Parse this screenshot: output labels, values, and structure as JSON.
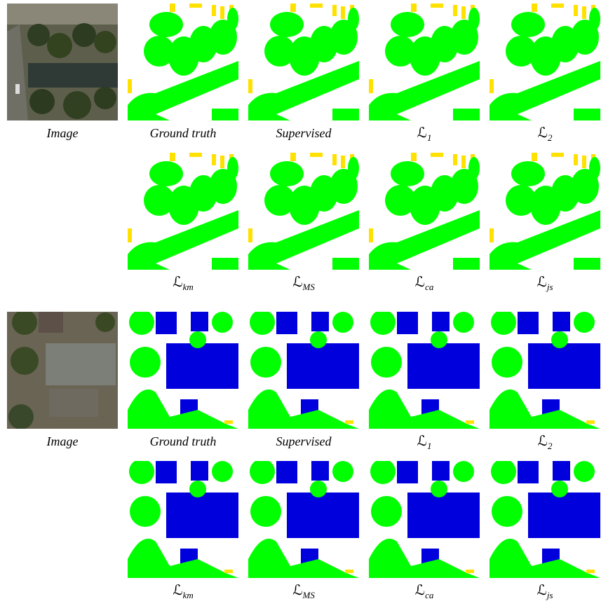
{
  "groups": [
    {
      "rows": [
        {
          "panels": [
            {
              "caption": "Image"
            },
            {
              "caption": "Ground truth"
            },
            {
              "caption": "Supervised"
            },
            {
              "caption": {
                "symbol": "ℒ",
                "sub": "1"
              }
            },
            {
              "caption": {
                "symbol": "ℒ",
                "sub": "2"
              }
            }
          ]
        },
        {
          "panels": [
            {
              "caption": {
                "symbol": "ℒ",
                "sub": "km"
              }
            },
            {
              "caption": {
                "symbol": "ℒ",
                "sub": "MS"
              }
            },
            {
              "caption": {
                "symbol": "ℒ",
                "sub": "ca"
              }
            },
            {
              "caption": {
                "symbol": "ℒ",
                "sub": "js"
              }
            }
          ]
        }
      ]
    },
    {
      "rows": [
        {
          "panels": [
            {
              "caption": "Image"
            },
            {
              "caption": "Ground truth"
            },
            {
              "caption": "Supervised"
            },
            {
              "caption": {
                "symbol": "ℒ",
                "sub": "1"
              }
            },
            {
              "caption": {
                "symbol": "ℒ",
                "sub": "2"
              }
            }
          ]
        },
        {
          "panels": [
            {
              "caption": {
                "symbol": "ℒ",
                "sub": "km"
              }
            },
            {
              "caption": {
                "symbol": "ℒ",
                "sub": "MS"
              }
            },
            {
              "caption": {
                "symbol": "ℒ",
                "sub": "ca"
              }
            },
            {
              "caption": {
                "symbol": "ℒ",
                "sub": "js"
              }
            }
          ]
        }
      ]
    }
  ]
}
